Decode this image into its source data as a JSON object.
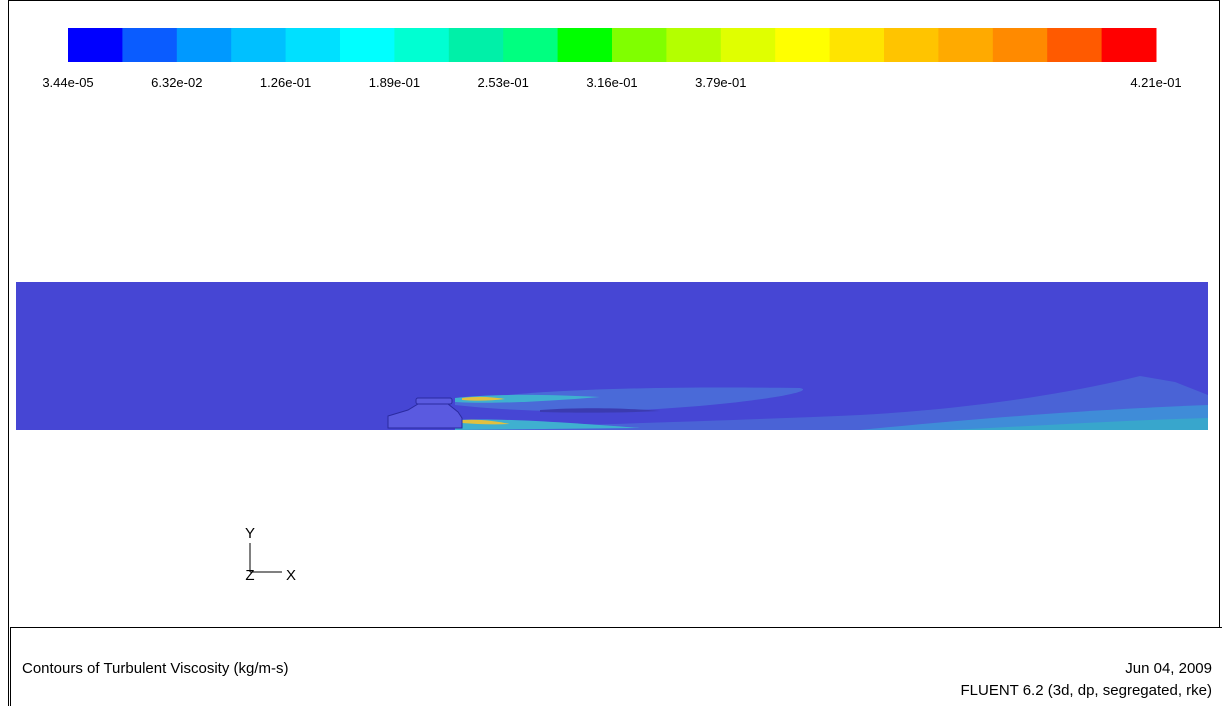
{
  "colorbar": {
    "colors": [
      "#0000ff",
      "#0a5cff",
      "#0099ff",
      "#00c0ff",
      "#00e0ff",
      "#00ffff",
      "#00ffd2",
      "#00f0a8",
      "#00ff80",
      "#00ff00",
      "#80ff00",
      "#b4ff00",
      "#e0ff00",
      "#ffff00",
      "#ffe400",
      "#ffc400",
      "#ffaa00",
      "#ff8a00",
      "#ff5a00",
      "#ff0000"
    ],
    "labels": [
      "3.44e-05",
      "6.32e-02",
      "1.26e-01",
      "1.89e-01",
      "2.53e-01",
      "3.16e-01",
      "3.79e-01",
      "4.21e-01"
    ]
  },
  "triad": {
    "y": "Y",
    "z": "Z",
    "x": "X"
  },
  "footer": {
    "title": "Contours of Turbulent Viscosity (kg/m-s)",
    "date": "Jun 04, 2009",
    "version": "FLUENT 6.2 (3d, dp, segregated, rke)"
  }
}
